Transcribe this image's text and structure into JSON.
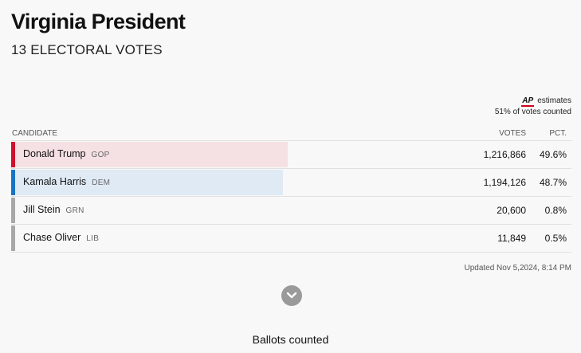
{
  "header": {
    "title": "Virginia President",
    "subtitle": "13 ELECTORAL VOTES"
  },
  "ap": {
    "logo": "AP",
    "estimates": "estimates",
    "counted": "51% of votes counted"
  },
  "table": {
    "columns": {
      "candidate": "CANDIDATE",
      "votes": "VOTES",
      "pct": "PCT."
    },
    "rows": [
      {
        "name": "Donald Trump",
        "party": "GOP",
        "votes": "1,216,866",
        "pct": "49.6%",
        "share": 0.496,
        "bar_color": "#f5e0e3",
        "stripe_color": "#d0102c"
      },
      {
        "name": "Kamala Harris",
        "party": "DEM",
        "votes": "1,194,126",
        "pct": "48.7%",
        "share": 0.487,
        "bar_color": "#dfeaf5",
        "stripe_color": "#1a74c4"
      },
      {
        "name": "Jill Stein",
        "party": "GRN",
        "votes": "20,600",
        "pct": "0.8%",
        "share": 0.0,
        "bar_color": "#f8f8f8",
        "stripe_color": "#a8a8a8"
      },
      {
        "name": "Chase Oliver",
        "party": "LIB",
        "votes": "11,849",
        "pct": "0.5%",
        "share": 0.0,
        "bar_color": "#f8f8f8",
        "stripe_color": "#a8a8a8"
      }
    ]
  },
  "updated": "Updated Nov 5,2024, 8:14 PM",
  "expand_icon": "chevron-down-icon",
  "ballots_title": "Ballots counted"
}
